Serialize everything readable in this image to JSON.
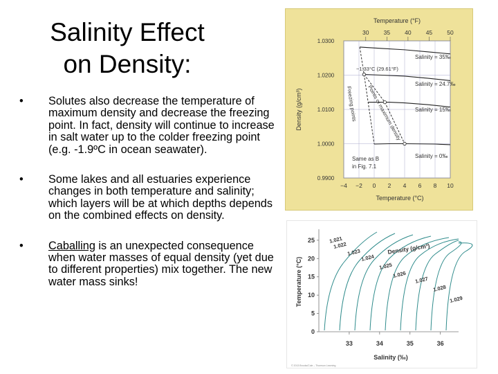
{
  "slide": {
    "title_line1": "Salinity Effect",
    "title_line2": "on Density:",
    "bullet_marker": "•",
    "bullets": [
      "Solutes also decrease the temperature of maximum density and decrease the freezing point.  In fact, density will continue to increase in salt water up to the colder freezing point (e.g. -1.9ºC in ocean seawater).",
      "Some lakes and all estuaries experience changes in both temperature and salinity; which layers will be at which depths depends on the combined effects on density."
    ],
    "bullet3_link": "Caballing",
    "bullet3_rest": " is an unexpected consequence when water masses of equal density (yet due to different properties) mix together.  The new water mass sinks!"
  },
  "chart_data": [
    {
      "type": "line",
      "xlabel": "Temperature (°C)",
      "ylabel": "Density (g/cm³)",
      "x2label": "Temperature (°F)",
      "x_ticks": [
        "−4",
        "−2",
        "0",
        "2",
        "4",
        "6",
        "8",
        "10"
      ],
      "y_ticks": [
        "1.0300",
        "1.0200",
        "1.0100",
        "1.0000",
        "0.9900"
      ],
      "x2_ticks": [
        "30",
        "35",
        "40",
        "45",
        "50"
      ],
      "xlim": [
        -4,
        10
      ],
      "ylim": [
        0.99,
        1.03
      ],
      "series": [
        {
          "name": "Salinity = 35‰",
          "x": [
            -1.9,
            1,
            4,
            7,
            10
          ],
          "y": [
            1.0282,
            1.0278,
            1.0274,
            1.0268,
            1.0262
          ]
        },
        {
          "name": "Salinity = 24.7‰",
          "x": [
            -1.33,
            1,
            4,
            7,
            10
          ],
          "y": [
            1.0202,
            1.02,
            1.0197,
            1.0191,
            1.0184
          ]
        },
        {
          "name": "Salinity = 15‰",
          "x": [
            -0.8,
            1,
            2,
            4,
            7,
            10
          ],
          "y": [
            1.0121,
            1.0121,
            1.0121,
            1.0119,
            1.0114,
            1.0107
          ]
        },
        {
          "name": "Salinity = 0‰",
          "x": [
            0,
            2,
            4,
            6,
            8,
            10
          ],
          "y": [
            0.9999,
            1.0,
            1.0,
            0.99995,
            0.9999,
            0.9997
          ]
        },
        {
          "name": "Points of maximum density",
          "x": [
            -1.33,
            1.4,
            4
          ],
          "y": [
            1.0202,
            1.0121,
            1.0
          ]
        },
        {
          "name": "Freezing points",
          "x": [
            -1.9,
            -1.33,
            -0.8,
            0
          ],
          "y": [
            1.0282,
            1.0202,
            1.0121,
            0.9999
          ]
        }
      ],
      "annotations": [
        "−1.33°C (29.61°F)",
        "Points of maximum density",
        "Freezing points",
        "Same as B",
        "in Fig. 7.1"
      ]
    },
    {
      "type": "line",
      "xlabel": "Salinity (‰)",
      "ylabel": "Temperature (°C)",
      "title": "Density (g/cm³)",
      "x_ticks": [
        "33",
        "34",
        "35",
        "36"
      ],
      "y_ticks": [
        "0",
        "5",
        "10",
        "15",
        "20",
        "25"
      ],
      "xlim": [
        32,
        36.6
      ],
      "ylim": [
        0,
        28
      ],
      "contour_labels": [
        "1.021",
        "1.022",
        "1.023",
        "1.024",
        "1.025",
        "1.026",
        "1.027",
        "1.028",
        "1.029"
      ],
      "credit": "© 2013 Brooks/Cole – Thomson Learning"
    }
  ]
}
